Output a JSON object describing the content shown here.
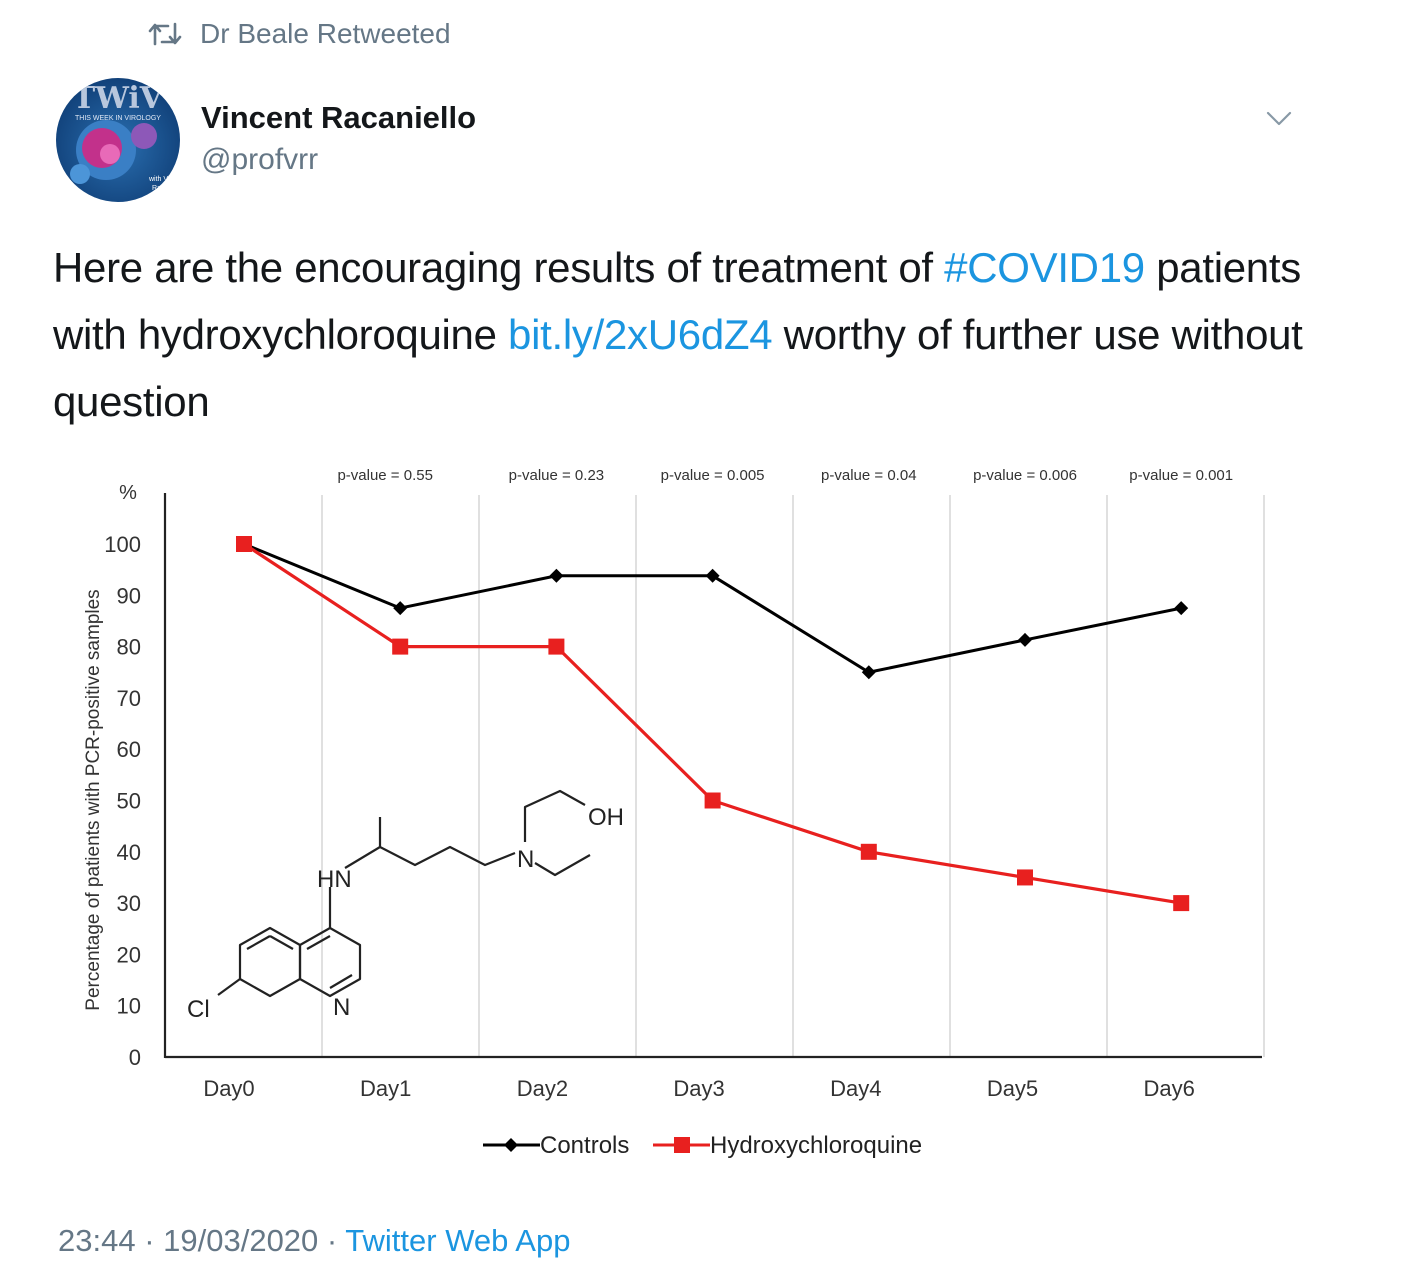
{
  "retweet": {
    "text": "Dr Beale Retweeted",
    "icon": "retweet-icon"
  },
  "author": {
    "name": "Vincent Racaniello",
    "handle": "@profvrr",
    "avatar": {
      "logo_text": "TWiV",
      "tagline": "THIS WEEK IN VIROLOGY",
      "credit_line1": "with Vinc",
      "credit_line2": "Racan"
    }
  },
  "tweet": {
    "part1": "Here are the encouraging results of treatment of ",
    "hashtag": "#COVID19",
    "part2": " patients with hydroxychloroquine ",
    "link": "bit.ly/2xU6dZ4",
    "part3": " worthy of further use without question"
  },
  "meta": {
    "time": "23:44",
    "sep1": " · ",
    "date": "19/03/2020",
    "sep2": " · ",
    "source": "Twitter Web App"
  },
  "chart_data": {
    "type": "line",
    "categories": [
      "Day0",
      "Day1",
      "Day2",
      "Day3",
      "Day4",
      "Day5",
      "Day6"
    ],
    "series": [
      {
        "name": "Controls",
        "values": [
          100,
          87.5,
          93.8,
          93.8,
          75,
          81.3,
          87.5
        ],
        "color": "#000000",
        "marker": "diamond"
      },
      {
        "name": "Hydroxychloroquine",
        "values": [
          100,
          80,
          80,
          50,
          40,
          35,
          30
        ],
        "color": "#e8201f",
        "marker": "square"
      }
    ],
    "p_values": [
      "p-value = 0.55",
      "p-value = 0.23",
      "p-value = 0.005",
      "p-value = 0.04",
      "p-value = 0.006",
      "p-value = 0.001"
    ],
    "ylabel": "Percentage of patients with PCR-positive samples",
    "yunit": "%",
    "ylim": [
      0,
      100
    ],
    "yticks": [
      0,
      10,
      20,
      30,
      40,
      50,
      60,
      70,
      80,
      90,
      100
    ],
    "grid": "vertical",
    "legend": "bottom",
    "molecule_labels": {
      "hn": "HN",
      "n_chain": "N",
      "oh": "OH",
      "n_ring": "N",
      "cl": "Cl"
    }
  },
  "colors": {
    "link": "#1b95e0",
    "muted": "#657786",
    "text": "#14171a"
  }
}
